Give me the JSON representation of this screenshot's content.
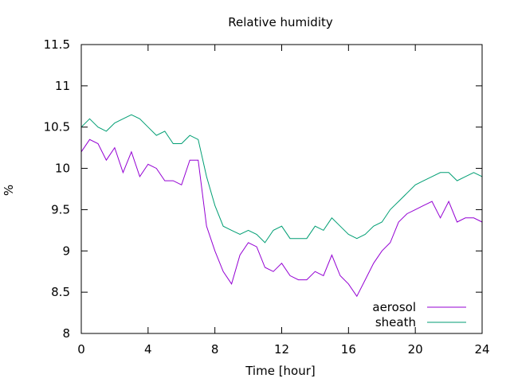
{
  "chart_data": {
    "type": "line",
    "title": "Relative humidity",
    "xlabel": "Time [hour]",
    "ylabel": "%",
    "xlim": [
      0,
      24
    ],
    "ylim": [
      8,
      11.5
    ],
    "xticks": [
      0,
      4,
      8,
      12,
      16,
      20,
      24
    ],
    "xtick_labels": [
      "0",
      "4",
      "8",
      "12",
      "16",
      "20",
      "24"
    ],
    "yticks": [
      8,
      8.5,
      9,
      9.5,
      10,
      10.5,
      11,
      11.5
    ],
    "ytick_labels": [
      "8",
      "8.5",
      "9",
      "9.5",
      "10",
      "10.5",
      "11",
      "11.5"
    ],
    "grid": false,
    "legend_position": "bottom-right",
    "series": [
      {
        "name": "aerosol",
        "color": "#9400d3",
        "x": [
          0,
          0.5,
          1,
          1.5,
          2,
          2.5,
          3,
          3.5,
          4,
          4.5,
          5,
          5.5,
          6,
          6.5,
          7,
          7.5,
          8,
          8.5,
          9,
          9.5,
          10,
          10.5,
          11,
          11.5,
          12,
          12.5,
          13,
          13.5,
          14,
          14.5,
          15,
          15.5,
          16,
          16.5,
          17,
          17.5,
          18,
          18.5,
          19,
          19.5,
          20,
          20.5,
          21,
          21.5,
          22,
          22.5,
          23,
          23.5,
          24
        ],
        "y": [
          10.2,
          10.35,
          10.3,
          10.1,
          10.25,
          9.95,
          10.2,
          9.9,
          10.05,
          10.0,
          9.85,
          9.85,
          9.8,
          10.1,
          10.1,
          9.3,
          9.0,
          8.75,
          8.6,
          8.95,
          9.1,
          9.05,
          8.8,
          8.75,
          8.85,
          8.7,
          8.65,
          8.65,
          8.75,
          8.7,
          8.95,
          8.7,
          8.6,
          8.45,
          8.65,
          8.85,
          9.0,
          9.1,
          9.35,
          9.45,
          9.5,
          9.55,
          9.6,
          9.4,
          9.6,
          9.35,
          9.4,
          9.4,
          9.35
        ]
      },
      {
        "name": "sheath",
        "color": "#009e73",
        "x": [
          0,
          0.5,
          1,
          1.5,
          2,
          2.5,
          3,
          3.5,
          4,
          4.5,
          5,
          5.5,
          6,
          6.5,
          7,
          7.5,
          8,
          8.5,
          9,
          9.5,
          10,
          10.5,
          11,
          11.5,
          12,
          12.5,
          13,
          13.5,
          14,
          14.5,
          15,
          15.5,
          16,
          16.5,
          17,
          17.5,
          18,
          18.5,
          19,
          19.5,
          20,
          20.5,
          21,
          21.5,
          22,
          22.5,
          23,
          23.5,
          24
        ],
        "y": [
          10.5,
          10.6,
          10.5,
          10.45,
          10.55,
          10.6,
          10.65,
          10.6,
          10.5,
          10.4,
          10.45,
          10.3,
          10.3,
          10.4,
          10.35,
          9.9,
          9.55,
          9.3,
          9.25,
          9.2,
          9.25,
          9.2,
          9.1,
          9.25,
          9.3,
          9.15,
          9.15,
          9.15,
          9.3,
          9.25,
          9.4,
          9.3,
          9.2,
          9.15,
          9.2,
          9.3,
          9.35,
          9.5,
          9.6,
          9.7,
          9.8,
          9.85,
          9.9,
          9.95,
          9.95,
          9.85,
          9.9,
          9.95,
          9.9
        ]
      }
    ]
  }
}
